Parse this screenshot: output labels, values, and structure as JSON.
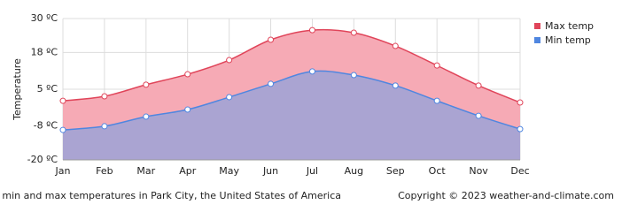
{
  "chart_data": {
    "type": "area",
    "categories": [
      "Jan",
      "Feb",
      "Mar",
      "Apr",
      "May",
      "Jun",
      "Jul",
      "Aug",
      "Sep",
      "Oct",
      "Nov",
      "Dec"
    ],
    "series": [
      {
        "name": "Max temp",
        "color": "#e0455a",
        "fill": "#f6aab5",
        "values": [
          0.9,
          2.5,
          6.6,
          10.3,
          15.3,
          22.5,
          25.9,
          25,
          20.3,
          13.4,
          6.3,
          0.3
        ]
      },
      {
        "name": "Min temp",
        "color": "#4f86e0",
        "fill": "#aaa4d2",
        "values": [
          -9.4,
          -8.1,
          -4.7,
          -2.2,
          2.2,
          6.9,
          11.3,
          10,
          6.3,
          0.9,
          -4.4,
          -9.1
        ]
      }
    ],
    "ylabel": "Temperature",
    "ylim": [
      -20,
      30
    ],
    "yticks": [
      {
        "value": -20,
        "label": "-20 ºC"
      },
      {
        "value": -8,
        "label": "-8 ºC"
      },
      {
        "value": 5,
        "label": "5 ºC"
      },
      {
        "value": 18,
        "label": "18 ºC"
      },
      {
        "value": 30,
        "label": "30 ºC"
      }
    ],
    "grid": true,
    "legend": "right",
    "caption": "Average min and max temperatures in Park City, the United States of America",
    "copyright": "Copyright © 2023  weather-and-climate.com"
  }
}
